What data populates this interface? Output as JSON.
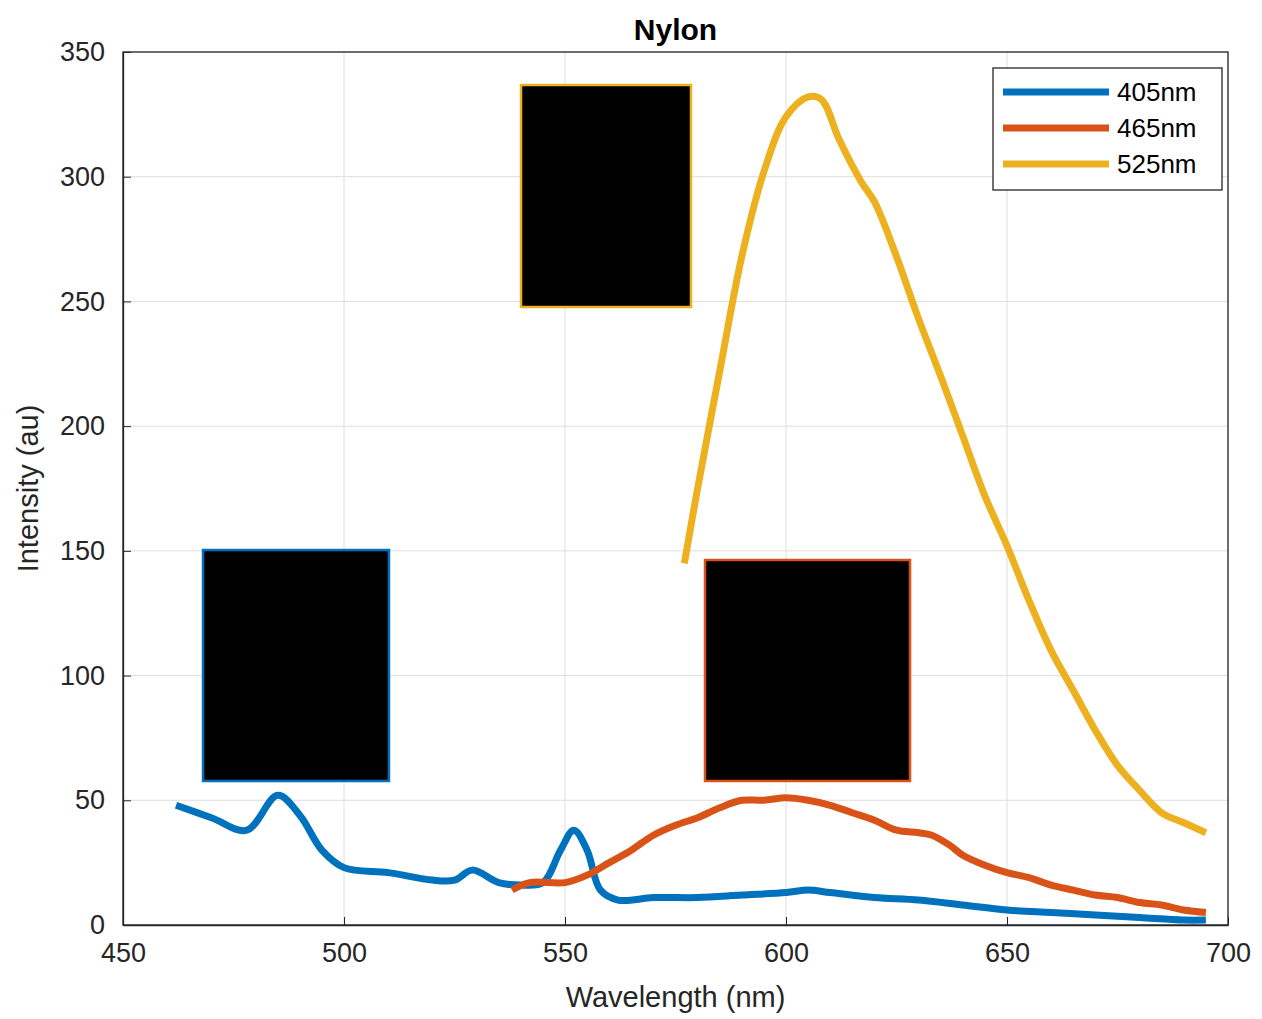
{
  "chart_data": {
    "type": "line",
    "title": "Nylon",
    "x_label": "Wavelength (nm)",
    "y_label": "Intensity (au)",
    "xlim": [
      450,
      700
    ],
    "xticks": [
      450,
      500,
      550,
      600,
      650,
      700
    ],
    "ylim": [
      0,
      350
    ],
    "yticks": [
      0,
      50,
      100,
      150,
      200,
      250,
      300,
      350
    ],
    "grid": true,
    "legend": "northeast",
    "series": [
      {
        "name": "405nm",
        "color": "#0072BD",
        "x": [
          462,
          470,
          478,
          485,
          490,
          495,
          500,
          510,
          520,
          525,
          529,
          535,
          540,
          545,
          549,
          552,
          555,
          558,
          562,
          570,
          580,
          590,
          600,
          605,
          610,
          620,
          630,
          640,
          650,
          660,
          670,
          680,
          690,
          695
        ],
        "values": [
          48,
          43,
          38,
          52,
          44,
          30,
          23,
          21,
          18,
          18,
          22,
          17,
          16,
          17,
          30,
          38,
          30,
          14,
          10,
          11,
          11,
          12,
          13,
          14,
          13,
          11,
          10,
          8,
          6,
          5,
          4,
          3,
          2,
          2
        ]
      },
      {
        "name": "465nm",
        "color": "#D95319",
        "x": [
          538,
          542,
          550,
          555,
          560,
          565,
          570,
          575,
          580,
          585,
          590,
          595,
          600,
          605,
          610,
          615,
          620,
          625,
          630,
          633,
          637,
          640,
          645,
          650,
          655,
          660,
          665,
          670,
          675,
          680,
          685,
          690,
          695
        ],
        "values": [
          14,
          17,
          17,
          20,
          25,
          30,
          36,
          40,
          43,
          47,
          50,
          50,
          51,
          50,
          48,
          45,
          42,
          38,
          37,
          36,
          32,
          28,
          24,
          21,
          19,
          16,
          14,
          12,
          11,
          9,
          8,
          6,
          5
        ]
      },
      {
        "name": "525nm",
        "color": "#EDB120",
        "x": [
          577,
          580,
          585,
          590,
          595,
          600,
          605,
          608,
          612,
          617,
          620,
          625,
          630,
          635,
          640,
          645,
          650,
          655,
          660,
          665,
          670,
          675,
          680,
          685,
          690,
          695
        ],
        "values": [
          145,
          175,
          222,
          268,
          302,
          324,
          332,
          331,
          315,
          298,
          290,
          268,
          243,
          220,
          196,
          172,
          152,
          130,
          110,
          94,
          78,
          64,
          54,
          45,
          41,
          37
        ]
      }
    ]
  }
}
